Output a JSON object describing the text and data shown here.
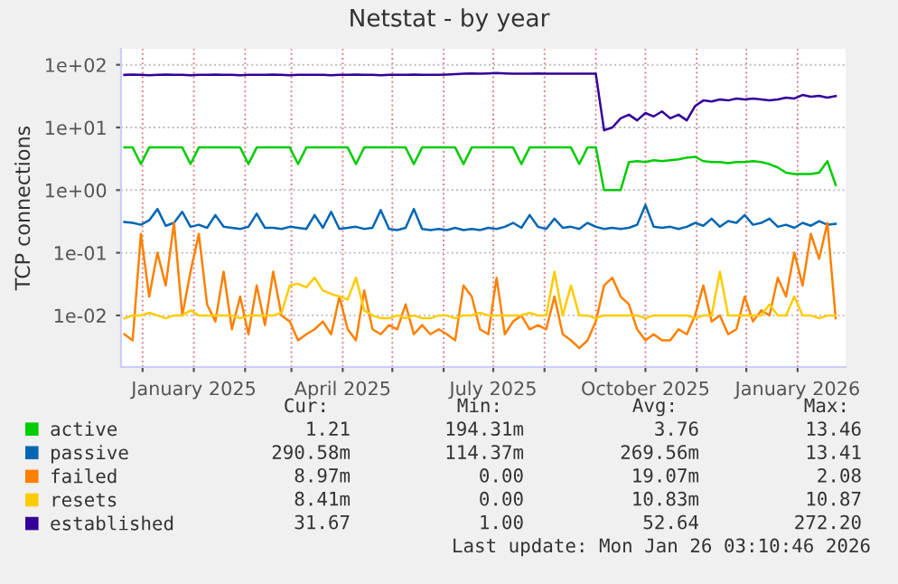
{
  "chart_data": {
    "type": "line",
    "title": "Netstat - by year",
    "ylabel": "TCP connections",
    "log": "y",
    "grid": true,
    "legend": "bottom left",
    "marker": "none",
    "line_style": "solid",
    "xlim": [
      "2024-11-18",
      "2026-01-30"
    ],
    "ylim": [
      0.0015,
      180
    ],
    "yticks": [
      {
        "value": 0.01,
        "label": "1e-02"
      },
      {
        "value": 0.1,
        "label": "1e-01"
      },
      {
        "value": 1,
        "label": "1e+00"
      },
      {
        "value": 10,
        "label": "1e+01"
      },
      {
        "value": 100,
        "label": "1e+02"
      }
    ],
    "xticks": [
      {
        "value": "2024-12-01",
        "label": null
      },
      {
        "value": "2025-01-01",
        "label": "January 2025"
      },
      {
        "value": "2025-02-01",
        "label": null
      },
      {
        "value": "2025-03-01",
        "label": null
      },
      {
        "value": "2025-04-01",
        "label": "April 2025"
      },
      {
        "value": "2025-05-01",
        "label": null
      },
      {
        "value": "2025-06-01",
        "label": null
      },
      {
        "value": "2025-07-01",
        "label": "July 2025"
      },
      {
        "value": "2025-08-01",
        "label": null
      },
      {
        "value": "2025-09-01",
        "label": null
      },
      {
        "value": "2025-10-01",
        "label": "October 2025"
      },
      {
        "value": "2025-11-01",
        "label": null
      },
      {
        "value": "2025-12-01",
        "label": null
      },
      {
        "value": "2026-01-01",
        "label": "January 2026"
      }
    ],
    "x": [
      "2024-11-20",
      "2024-11-25",
      "2024-11-30",
      "2024-12-05",
      "2024-12-10",
      "2024-12-15",
      "2024-12-20",
      "2024-12-25",
      "2024-12-30",
      "2025-01-04",
      "2025-01-09",
      "2025-01-14",
      "2025-01-19",
      "2025-01-24",
      "2025-01-29",
      "2025-02-03",
      "2025-02-08",
      "2025-02-13",
      "2025-02-18",
      "2025-02-23",
      "2025-02-28",
      "2025-03-05",
      "2025-03-10",
      "2025-03-15",
      "2025-03-20",
      "2025-03-25",
      "2025-03-30",
      "2025-04-04",
      "2025-04-09",
      "2025-04-14",
      "2025-04-19",
      "2025-04-24",
      "2025-04-29",
      "2025-05-04",
      "2025-05-09",
      "2025-05-14",
      "2025-05-19",
      "2025-05-24",
      "2025-05-29",
      "2025-06-03",
      "2025-06-08",
      "2025-06-13",
      "2025-06-18",
      "2025-06-23",
      "2025-06-28",
      "2025-07-03",
      "2025-07-08",
      "2025-07-13",
      "2025-07-18",
      "2025-07-23",
      "2025-07-28",
      "2025-08-02",
      "2025-08-07",
      "2025-08-12",
      "2025-08-17",
      "2025-08-22",
      "2025-08-27",
      "2025-09-01",
      "2025-09-06",
      "2025-09-11",
      "2025-09-16",
      "2025-09-21",
      "2025-09-26",
      "2025-10-01",
      "2025-10-06",
      "2025-10-11",
      "2025-10-16",
      "2025-10-21",
      "2025-10-26",
      "2025-10-31",
      "2025-11-05",
      "2025-11-10",
      "2025-11-15",
      "2025-11-20",
      "2025-11-25",
      "2025-11-30",
      "2025-12-05",
      "2025-12-10",
      "2025-12-15",
      "2025-12-20",
      "2025-12-25",
      "2025-12-30",
      "2026-01-04",
      "2026-01-09",
      "2026-01-14",
      "2026-01-19",
      "2026-01-24"
    ],
    "series": [
      {
        "name": "active",
        "color": "#00cc00",
        "values": [
          4.8,
          4.8,
          2.6,
          4.8,
          4.8,
          4.8,
          4.8,
          4.8,
          2.6,
          4.8,
          4.8,
          4.8,
          4.8,
          4.8,
          4.8,
          2.6,
          4.8,
          4.8,
          4.8,
          4.8,
          4.8,
          2.6,
          4.8,
          4.8,
          4.8,
          4.8,
          4.8,
          4.8,
          2.6,
          4.8,
          4.8,
          4.8,
          4.8,
          4.8,
          4.8,
          2.6,
          4.8,
          4.8,
          4.8,
          4.8,
          4.8,
          2.6,
          4.8,
          4.8,
          4.8,
          4.8,
          4.8,
          4.8,
          2.6,
          4.8,
          4.8,
          4.8,
          4.8,
          4.8,
          4.8,
          2.6,
          4.8,
          4.8,
          1.0,
          1.0,
          1.0,
          2.8,
          2.9,
          2.8,
          3.0,
          2.9,
          3.0,
          3.1,
          3.3,
          3.4,
          2.9,
          2.8,
          2.8,
          2.7,
          2.8,
          2.8,
          2.9,
          2.8,
          2.6,
          2.3,
          1.9,
          1.8,
          1.8,
          1.8,
          1.9,
          2.9,
          1.21
        ]
      },
      {
        "name": "passive",
        "color": "#0066b3",
        "values": [
          0.31,
          0.3,
          0.28,
          0.33,
          0.5,
          0.27,
          0.3,
          0.45,
          0.26,
          0.28,
          0.25,
          0.4,
          0.26,
          0.25,
          0.24,
          0.26,
          0.42,
          0.25,
          0.25,
          0.24,
          0.26,
          0.25,
          0.24,
          0.4,
          0.25,
          0.45,
          0.24,
          0.25,
          0.26,
          0.24,
          0.25,
          0.48,
          0.24,
          0.23,
          0.25,
          0.5,
          0.24,
          0.23,
          0.24,
          0.23,
          0.25,
          0.23,
          0.24,
          0.23,
          0.25,
          0.24,
          0.26,
          0.3,
          0.25,
          0.4,
          0.26,
          0.24,
          0.35,
          0.25,
          0.26,
          0.24,
          0.3,
          0.26,
          0.24,
          0.25,
          0.24,
          0.25,
          0.28,
          0.58,
          0.26,
          0.25,
          0.26,
          0.24,
          0.26,
          0.3,
          0.27,
          0.35,
          0.26,
          0.32,
          0.3,
          0.4,
          0.28,
          0.3,
          0.35,
          0.26,
          0.28,
          0.25,
          0.3,
          0.27,
          0.32,
          0.28,
          0.29
        ]
      },
      {
        "name": "failed",
        "color": "#ff8000",
        "values": [
          0.005,
          0.004,
          0.2,
          0.02,
          0.1,
          0.03,
          0.3,
          0.01,
          0.05,
          0.2,
          0.015,
          0.008,
          0.05,
          0.006,
          0.02,
          0.005,
          0.03,
          0.007,
          0.05,
          0.01,
          0.008,
          0.004,
          0.005,
          0.006,
          0.008,
          0.005,
          0.02,
          0.006,
          0.004,
          0.025,
          0.006,
          0.005,
          0.007,
          0.006,
          0.015,
          0.005,
          0.007,
          0.005,
          0.006,
          0.005,
          0.004,
          0.03,
          0.02,
          0.006,
          0.005,
          0.04,
          0.005,
          0.008,
          0.01,
          0.006,
          0.007,
          0.006,
          0.02,
          0.005,
          0.004,
          0.003,
          0.004,
          0.008,
          0.03,
          0.04,
          0.02,
          0.015,
          0.006,
          0.004,
          0.005,
          0.004,
          0.004,
          0.006,
          0.005,
          0.01,
          0.03,
          0.008,
          0.01,
          0.005,
          0.006,
          0.02,
          0.008,
          0.012,
          0.01,
          0.04,
          0.02,
          0.1,
          0.03,
          0.2,
          0.08,
          0.3,
          0.009
        ]
      },
      {
        "name": "resets",
        "color": "#ffcc00",
        "values": [
          0.009,
          0.01,
          0.01,
          0.011,
          0.01,
          0.009,
          0.01,
          0.01,
          0.012,
          0.01,
          0.01,
          0.01,
          0.01,
          0.01,
          0.009,
          0.01,
          0.01,
          0.01,
          0.01,
          0.011,
          0.03,
          0.032,
          0.028,
          0.04,
          0.025,
          0.022,
          0.02,
          0.018,
          0.04,
          0.012,
          0.01,
          0.009,
          0.009,
          0.01,
          0.009,
          0.01,
          0.009,
          0.009,
          0.01,
          0.01,
          0.009,
          0.01,
          0.01,
          0.011,
          0.01,
          0.01,
          0.01,
          0.01,
          0.01,
          0.011,
          0.01,
          0.01,
          0.05,
          0.01,
          0.03,
          0.01,
          0.01,
          0.009,
          0.01,
          0.01,
          0.01,
          0.01,
          0.01,
          0.009,
          0.01,
          0.01,
          0.01,
          0.01,
          0.01,
          0.009,
          0.01,
          0.01,
          0.05,
          0.01,
          0.01,
          0.01,
          0.01,
          0.01,
          0.015,
          0.01,
          0.01,
          0.02,
          0.01,
          0.01,
          0.009,
          0.01,
          0.01
        ]
      },
      {
        "name": "established",
        "color": "#330099",
        "values": [
          69,
          70,
          69,
          68,
          69,
          70,
          69,
          69,
          68,
          69,
          69,
          70,
          69,
          69,
          68,
          69,
          69,
          69,
          70,
          69,
          68,
          69,
          69,
          69,
          69,
          68,
          69,
          69,
          70,
          69,
          69,
          68,
          69,
          69,
          69,
          70,
          69,
          69,
          69,
          70,
          71,
          72,
          73,
          72,
          73,
          74,
          73,
          72,
          72,
          72,
          73,
          72,
          72,
          72,
          72,
          72,
          72,
          72,
          9.0,
          10,
          14,
          16,
          13,
          17,
          15,
          18,
          14,
          16,
          13,
          22,
          27,
          26,
          28,
          27,
          29,
          28,
          29,
          28,
          27,
          28,
          30,
          29,
          33,
          31,
          32,
          30,
          31.67
        ]
      }
    ],
    "annotations": [
      "Cur:",
      "Min:",
      "Avg:",
      "Max:",
      "1.21",
      "194.31m",
      "3.76",
      "13.46",
      "290.58m",
      "114.37m",
      "269.56m",
      "13.41",
      "8.97m",
      "0.00",
      "19.07m",
      "2.08",
      "8.41m",
      "0.00",
      "10.83m",
      "10.87",
      "31.67",
      "1.00",
      "52.64",
      "272.20",
      "Last update: Mon Jan 26 03:10:46 2026"
    ]
  }
}
